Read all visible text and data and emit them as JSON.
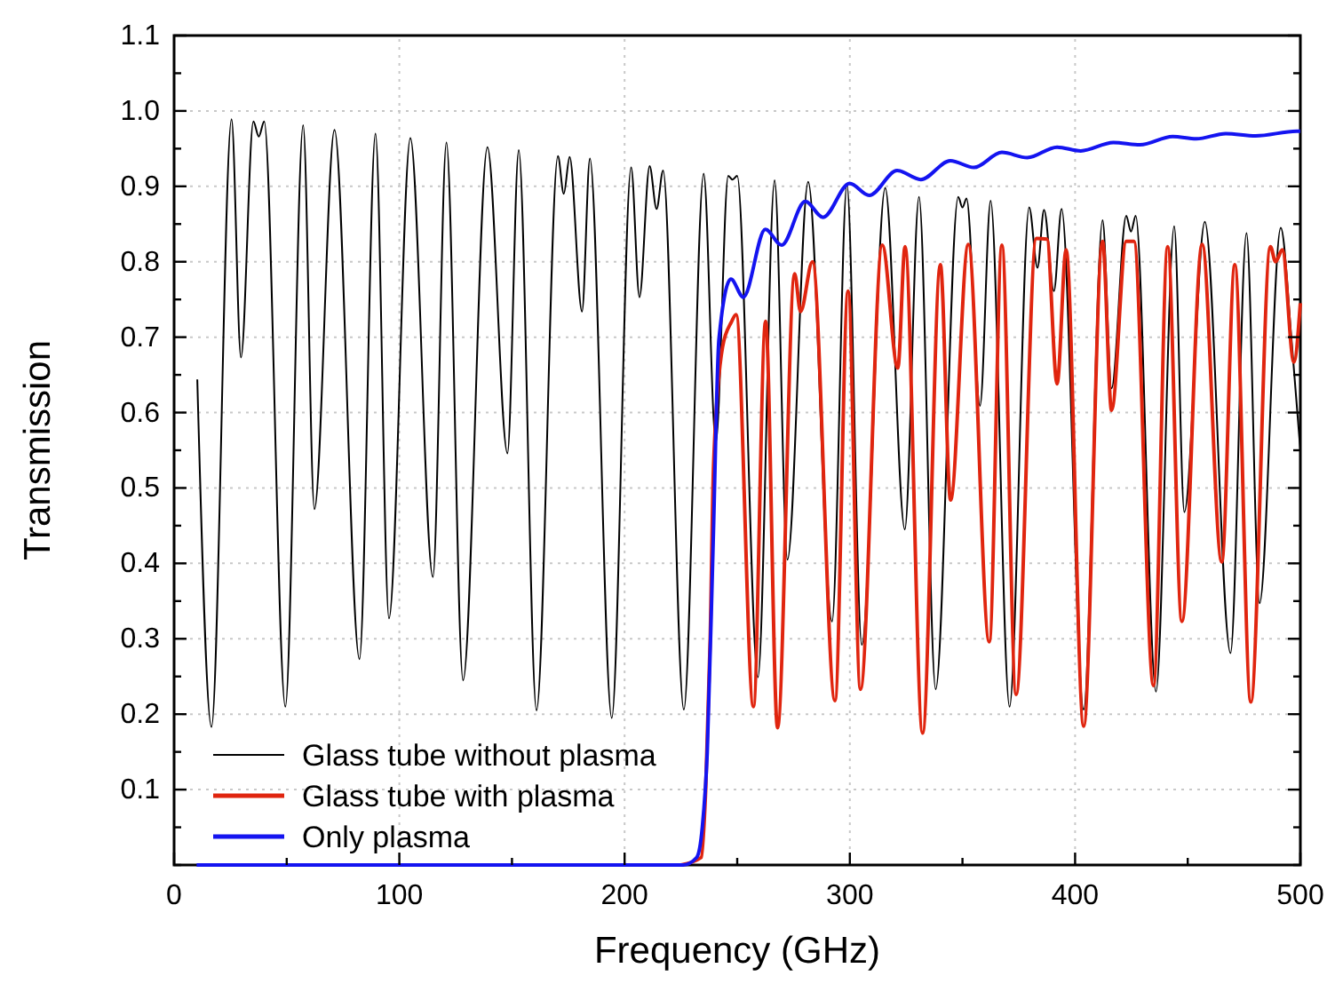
{
  "chart_data": {
    "type": "line",
    "xlabel": "Frequency (GHz)",
    "ylabel": "Transmission",
    "xlim": [
      0,
      500
    ],
    "ylim": [
      0,
      1.1
    ],
    "xticks": [
      0,
      {
        "value": 50,
        "label": null
      },
      100,
      {
        "value": 150,
        "label": null
      },
      200,
      {
        "value": 250,
        "label": null
      },
      300,
      {
        "value": 350,
        "label": null
      },
      400,
      {
        "value": 450,
        "label": null
      },
      500
    ],
    "yticks": [
      {
        "value": 0,
        "label": null
      },
      {
        "value": 0.05,
        "label": null
      },
      0.1,
      {
        "value": 0.15,
        "label": null
      },
      0.2,
      {
        "value": 0.25,
        "label": null
      },
      0.3,
      {
        "value": 0.35,
        "label": null
      },
      0.4,
      {
        "value": 0.45,
        "label": null
      },
      0.5,
      {
        "value": 0.55,
        "label": null
      },
      0.6,
      {
        "value": 0.65,
        "label": null
      },
      0.7,
      {
        "value": 0.75,
        "label": null
      },
      0.8,
      {
        "value": 0.85,
        "label": null
      },
      0.9,
      {
        "value": 0.95,
        "label": null
      },
      {
        "value": 1,
        "label": "1.0"
      },
      {
        "value": 1.05,
        "label": null
      },
      1.1
    ],
    "grid": true,
    "legend": "bottom left",
    "line_style": "solid",
    "marker": "none",
    "series": [
      {
        "name": "Glass tube without plasma",
        "color": "#000000",
        "x": [
          10.3,
          16.6,
          25.5,
          29.7,
          35.2,
          37.6,
          40,
          49.4,
          57.3,
          62.3,
          71.2,
          82.3,
          89.4,
          95.4,
          104.9,
          114.9,
          120.9,
          128.3,
          139.1,
          148,
          153,
          160.9,
          170.4,
          173,
          175.6,
          181.1,
          184.6,
          194.3,
          202.9,
          206.6,
          211.1,
          214.2,
          217.1,
          226.3,
          235.1,
          240.5,
          246,
          247.9,
          250,
          259.2,
          266.6,
          272.3,
          281.5,
          292.1,
          298.7,
          305.3,
          315.7,
          324.4,
          330.7,
          338.1,
          348.1,
          350,
          351.8,
          357.8,
          362.5,
          370.9,
          379.6,
          383.3,
          386.2,
          390.6,
          394,
          403.8,
          412.2,
          416.2,
          422.7,
          424.8,
          426.9,
          435.9,
          444,
          448.5,
          457.6,
          469,
          476.1,
          481.9,
          491.3,
          496,
          500
        ],
        "values": [
          0.644,
          0.183,
          0.989,
          0.673,
          0.986,
          0.966,
          0.986,
          0.21,
          0.981,
          0.472,
          0.975,
          0.273,
          0.97,
          0.327,
          0.964,
          0.382,
          0.958,
          0.245,
          0.952,
          0.546,
          0.948,
          0.205,
          0.94,
          0.89,
          0.939,
          0.734,
          0.937,
          0.195,
          0.925,
          0.753,
          0.927,
          0.87,
          0.921,
          0.206,
          0.917,
          0.56,
          0.914,
          0.909,
          0.914,
          0.249,
          0.908,
          0.405,
          0.906,
          0.323,
          0.902,
          0.292,
          0.898,
          0.445,
          0.886,
          0.233,
          0.886,
          0.872,
          0.884,
          0.609,
          0.881,
          0.21,
          0.872,
          0.792,
          0.869,
          0.761,
          0.87,
          0.206,
          0.855,
          0.632,
          0.861,
          0.84,
          0.861,
          0.23,
          0.847,
          0.468,
          0.853,
          0.281,
          0.838,
          0.347,
          0.845,
          0.7,
          0.55
        ]
      },
      {
        "name": "Glass tube with plasma",
        "color": "#e0250f",
        "x": [
          225,
          234,
          236,
          238,
          239.5,
          243.5,
          247.4,
          249.5,
          257.2,
          262.6,
          267.9,
          275.5,
          278.1,
          283.4,
          293.4,
          299.2,
          304.7,
          314.4,
          321.3,
          324.5,
          332.3,
          340.2,
          344.7,
          352.6,
          361.9,
          367.5,
          373.8,
          382.8,
          387.5,
          392,
          396,
          403.8,
          412.2,
          416.2,
          422.7,
          426.1,
          434.8,
          441.1,
          447.4,
          456.4,
          465.1,
          470.9,
          478,
          486.7,
          489,
          492,
          497.1,
          500
        ],
        "values": [
          0,
          0.01,
          0.1,
          0.3,
          0.53,
          0.687,
          0.72,
          0.73,
          0.21,
          0.721,
          0.182,
          0.784,
          0.734,
          0.8,
          0.218,
          0.761,
          0.233,
          0.822,
          0.659,
          0.82,
          0.175,
          0.796,
          0.484,
          0.823,
          0.296,
          0.822,
          0.226,
          0.831,
          0.83,
          0.638,
          0.816,
          0.184,
          0.827,
          0.603,
          0.827,
          0.827,
          0.238,
          0.82,
          0.323,
          0.823,
          0.402,
          0.796,
          0.216,
          0.82,
          0.8,
          0.816,
          0.667,
          0.745
        ]
      },
      {
        "name": "Only plasma",
        "color": "#1414f0",
        "x": [
          10,
          226,
          232,
          234.5,
          236.7,
          239.3,
          241.9,
          247.2,
          252.7,
          262.5,
          269.7,
          280.2,
          288.1,
          299.9,
          308.6,
          321,
          331.5,
          344.6,
          355.1,
          367.5,
          378.8,
          392,
          402.5,
          417,
          428.8,
          443.3,
          453.8,
          466.9,
          480.1,
          498.4,
          500
        ],
        "values": [
          0,
          0,
          0.01,
          0.05,
          0.15,
          0.425,
          0.698,
          0.777,
          0.753,
          0.843,
          0.822,
          0.88,
          0.859,
          0.904,
          0.888,
          0.921,
          0.909,
          0.934,
          0.925,
          0.945,
          0.938,
          0.952,
          0.947,
          0.958,
          0.955,
          0.966,
          0.963,
          0.97,
          0.967,
          0.973,
          0.973
        ]
      }
    ]
  }
}
